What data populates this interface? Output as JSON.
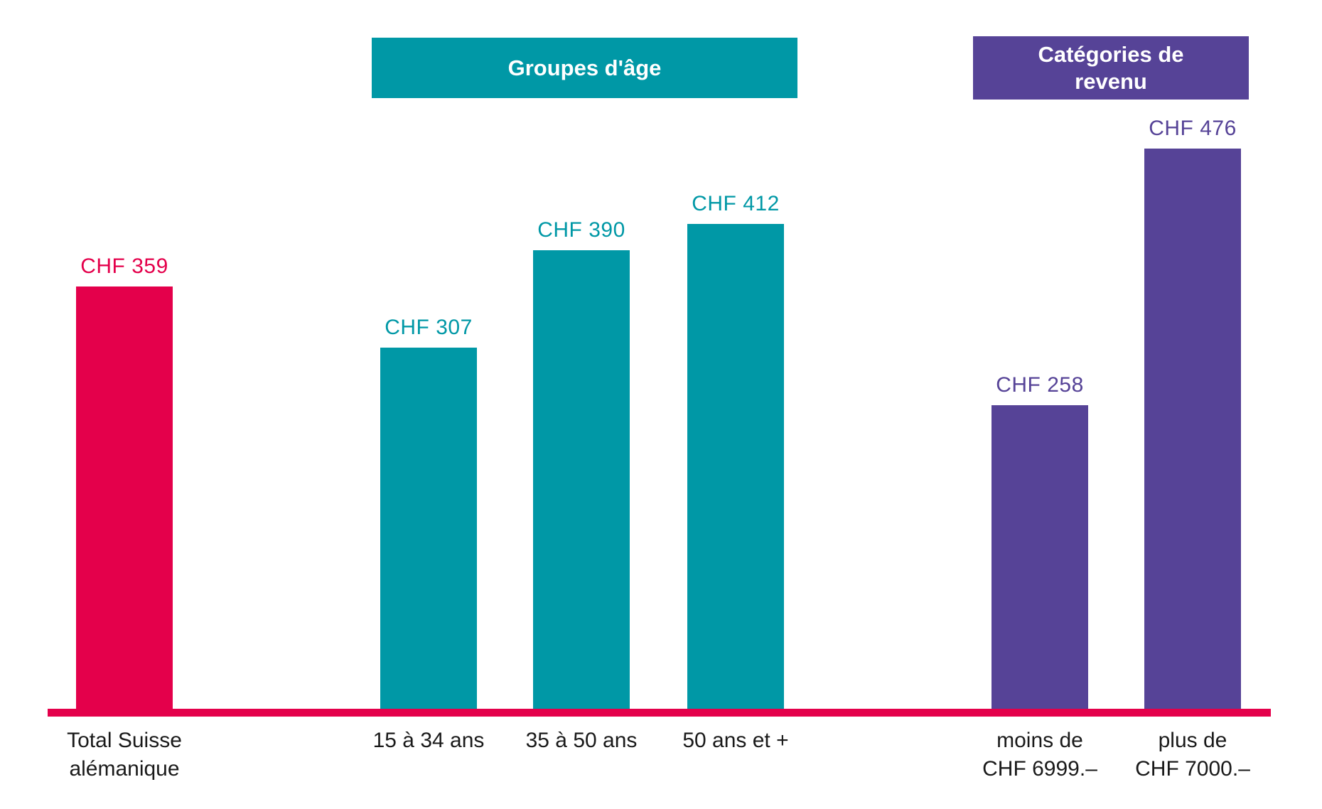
{
  "figure": {
    "background": "#ffffff",
    "text_color": "#1a1a1a"
  },
  "headers": {
    "age_group": {
      "label": "Groupes d'âge",
      "color": "#0098a6",
      "text_color": "#ffffff"
    },
    "income": {
      "label_lines": [
        "Catégories de",
        "revenu"
      ],
      "label": "Catégories de revenu",
      "color": "#564397",
      "text_color": "#ffffff"
    }
  },
  "chart_data": {
    "type": "bar",
    "currency": "CHF",
    "ylim": [
      0,
      500
    ],
    "grid": false,
    "baseline_color": "#e4004b",
    "series": [
      {
        "name": "Total",
        "key": "total",
        "color": "#e4004b",
        "bars": [
          {
            "category_lines": [
              "Total Suisse",
              "alémanique"
            ],
            "value": 359,
            "value_label": "CHF 359"
          }
        ]
      },
      {
        "name": "Groupes d'âge",
        "key": "age",
        "color": "#0098a6",
        "bars": [
          {
            "category_lines": [
              "15 à 34 ans"
            ],
            "value": 307,
            "value_label": "CHF 307"
          },
          {
            "category_lines": [
              "35 à 50 ans"
            ],
            "value": 390,
            "value_label": "CHF 390"
          },
          {
            "category_lines": [
              "50 ans et +"
            ],
            "value": 412,
            "value_label": "CHF 412"
          }
        ]
      },
      {
        "name": "Catégories de revenu",
        "key": "income",
        "color": "#564397",
        "bars": [
          {
            "category_lines": [
              "moins de",
              "CHF 6999.–"
            ],
            "value": 258,
            "value_label": "CHF 258"
          },
          {
            "category_lines": [
              "plus de",
              "CHF 7000.–"
            ],
            "value": 476,
            "value_label": "CHF 476"
          }
        ]
      }
    ]
  }
}
